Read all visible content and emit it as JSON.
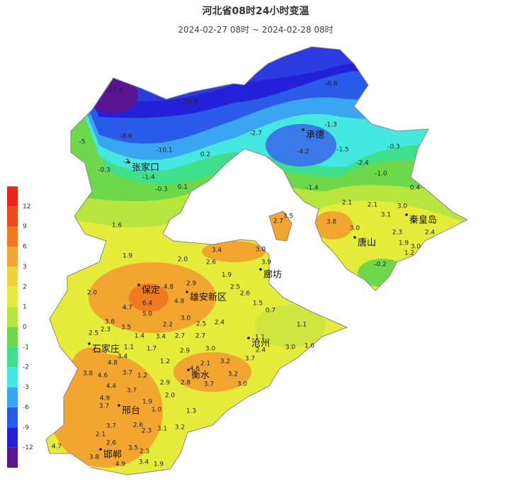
{
  "title": "河北省08时24小时变温",
  "subtitle": "2024-02-27 08时 ~ 2024-02-28 08时",
  "legend": {
    "labels": [
      "12",
      "9",
      "6",
      "3",
      "2",
      "1",
      "0",
      "-1",
      "-2",
      "-3",
      "-6",
      "-9",
      "-12"
    ],
    "colors": [
      "#e8261e",
      "#ec4a1e",
      "#f07a1e",
      "#f2a630",
      "#f0d23a",
      "#e2ec3a",
      "#b8e63e",
      "#6cd84a",
      "#3ee08c",
      "#44e8e0",
      "#3aa6f2",
      "#2a5ae8",
      "#2420d8",
      "#5a1490"
    ]
  },
  "cities": [
    "张家口",
    "承德",
    "秦皇岛",
    "唐山",
    "廊坊",
    "保定",
    "雄安新区",
    "沧州",
    "石家庄",
    "衡水",
    "邢台",
    "邯郸"
  ],
  "stations": [
    "-12.6",
    "-10.9",
    "-6.6",
    "-1.3",
    "-2.7",
    "-8.6",
    "-10.1",
    "-5",
    "-4.2",
    "-1.5",
    "-0.3",
    "0.2",
    "-2.4",
    "-1.0",
    "-0.3",
    "-2",
    "-1.4",
    "-0.3",
    "0.1",
    "-1.4",
    "0.4",
    "2.1",
    "2.1",
    "3.0",
    "3.5",
    "2.7",
    "3.8",
    "3.1",
    "2.3",
    "2.4",
    "3.0",
    "3.0",
    "1.9",
    "1.2",
    "-0.2",
    "1.6",
    "1.9",
    "2.0",
    "3.4",
    "2.6",
    "3.0",
    "3.9",
    "1.9",
    "4.8",
    "2.9",
    "2.5",
    "2.0",
    "4.8",
    "2.6",
    "4.7",
    "6.4",
    "1.5",
    "0.7",
    "5.0",
    "3.0",
    "2.4",
    "1.1",
    "3.6",
    "3.5",
    "2.2",
    "2.5",
    "2.5",
    "2.3",
    "2.7",
    "2.7",
    "1.4",
    "3.4",
    "1.1",
    "3.0",
    "1.6",
    "1.1",
    "1.7",
    "2.9",
    "3.0",
    "2.4",
    "4.8",
    "3.4",
    "1.2",
    "3.2",
    "3.7",
    "3.8",
    "4.6",
    "2.1",
    "3.2",
    "3.0",
    "4.6",
    "3.7",
    "3.7",
    "2.8",
    "2.9",
    "4.4",
    "3.7",
    "1.2",
    "4.9",
    "3.7",
    "1.9",
    "1.0",
    "1.3",
    "2.0",
    "3.2",
    "2.3",
    "3.7",
    "2.6",
    "3.1",
    "2.1",
    "2.6",
    "3.5",
    "2.3",
    "4.7",
    "3.8",
    "4.9",
    "3.4",
    "1.9"
  ]
}
